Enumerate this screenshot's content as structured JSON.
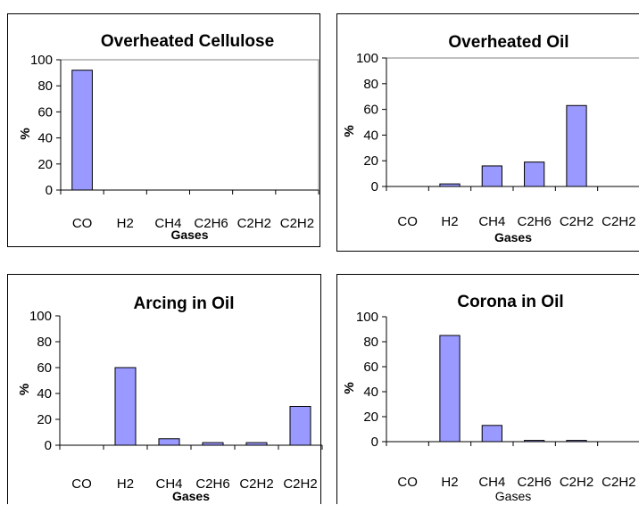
{
  "chart_data": [
    {
      "type": "bar",
      "title": "Overheated Cellulose",
      "xlabel": "Gases",
      "ylabel": "%",
      "categories": [
        "CO",
        "H2",
        "CH4",
        "C2H6",
        "C2H2",
        "C2H2"
      ],
      "values": [
        92,
        0,
        0,
        0,
        0,
        0
      ],
      "ylim": [
        0,
        100
      ],
      "yticks": [
        0,
        20,
        40,
        60,
        80,
        100
      ],
      "grid": false,
      "bar_color": "#9999ff",
      "plot_area_border": true
    },
    {
      "type": "bar",
      "title": "Overheated Oil",
      "xlabel": "Gases",
      "ylabel": "%",
      "categories": [
        "CO",
        "H2",
        "CH4",
        "C2H6",
        "C2H2",
        "C2H2"
      ],
      "values": [
        0,
        2,
        16,
        19,
        63,
        0
      ],
      "ylim": [
        0,
        100
      ],
      "yticks": [
        0,
        20,
        40,
        60,
        80,
        100
      ],
      "grid": false,
      "bar_color": "#9999ff",
      "plot_area_border": true
    },
    {
      "type": "bar",
      "title": "Arcing in Oil",
      "xlabel": "Gases",
      "ylabel": "%",
      "categories": [
        "CO",
        "H2",
        "CH4",
        "C2H6",
        "C2H2",
        "C2H2"
      ],
      "values": [
        0,
        60,
        5,
        2,
        2,
        30
      ],
      "ylim": [
        0,
        100
      ],
      "yticks": [
        0,
        20,
        40,
        60,
        80,
        100
      ],
      "grid": false,
      "bar_color": "#9999ff",
      "plot_area_border": false
    },
    {
      "type": "bar",
      "title": "Corona in Oil",
      "xlabel": "Gases",
      "ylabel": "%",
      "categories": [
        "CO",
        "H2",
        "CH4",
        "C2H6",
        "C2H2",
        "C2H2"
      ],
      "values": [
        0,
        85,
        13,
        1,
        1,
        0
      ],
      "ylim": [
        0,
        100
      ],
      "yticks": [
        0,
        20,
        40,
        60,
        80,
        100
      ],
      "grid": false,
      "bar_color": "#9999ff",
      "plot_area_border": false,
      "xlabel_bold": false
    }
  ]
}
